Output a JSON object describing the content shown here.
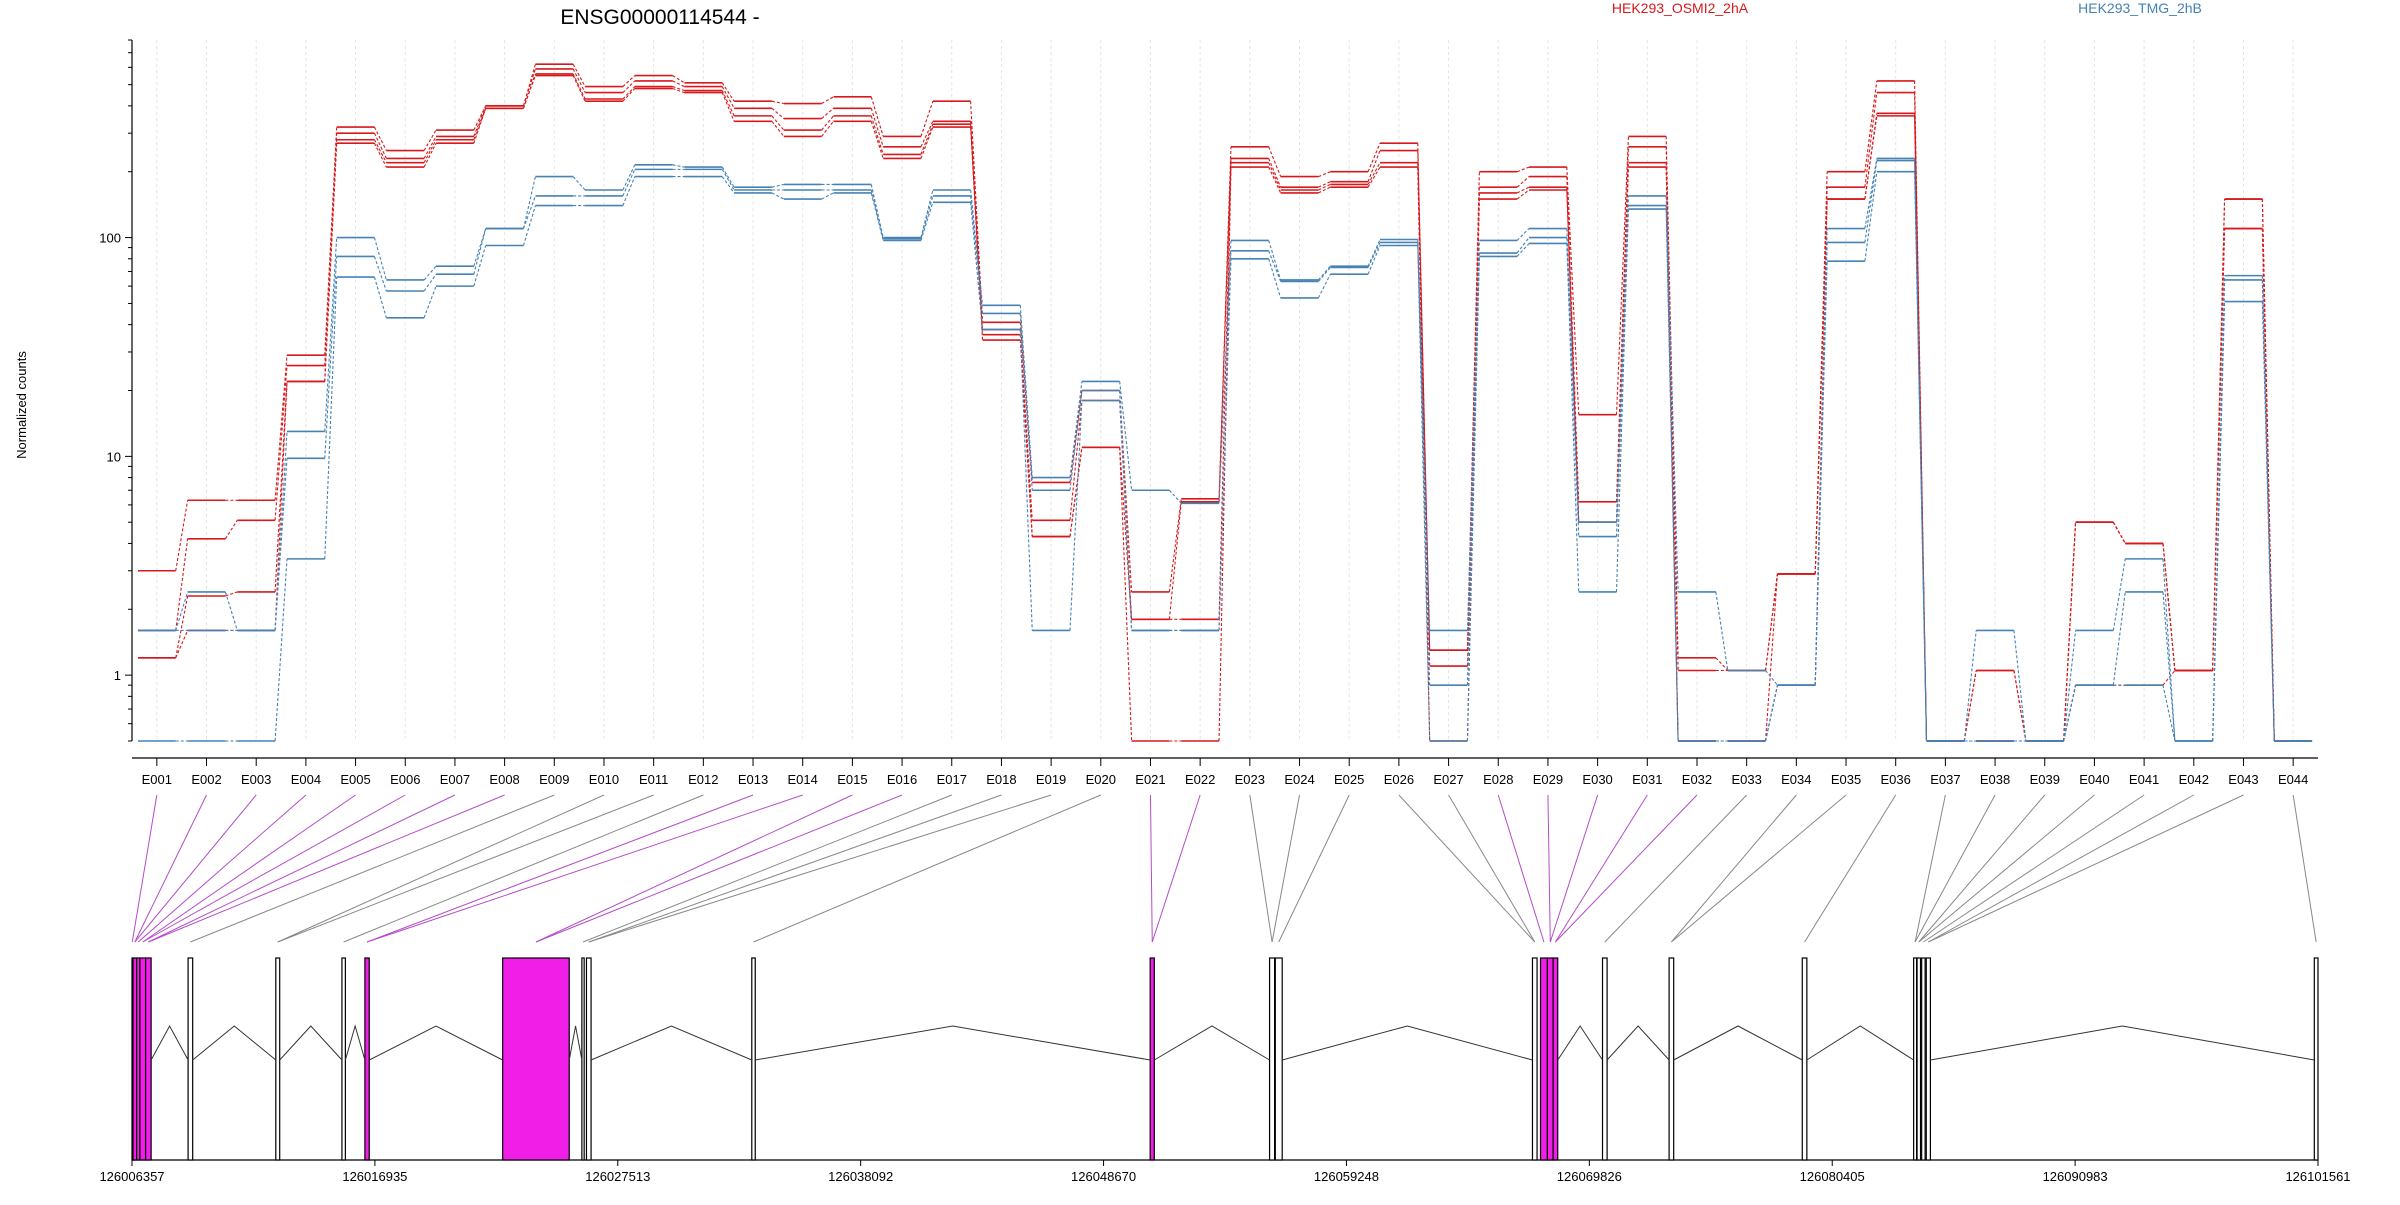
{
  "chart_data": {
    "type": "line",
    "title": "ENSG00000114544 -",
    "ylabel": "Normalized counts",
    "yscale": "log",
    "ylim": [
      0.5,
      800
    ],
    "yticks": [
      {
        "value": 1,
        "label": "1"
      },
      {
        "value": 10,
        "label": "10"
      },
      {
        "value": 100,
        "label": "100"
      }
    ],
    "grid": "vertical dashed at exon centers",
    "legend": "top, horizontal",
    "categories": [
      "E001",
      "E002",
      "E003",
      "E004",
      "E005",
      "E006",
      "E007",
      "E008",
      "E009",
      "E010",
      "E011",
      "E012",
      "E013",
      "E014",
      "E015",
      "E016",
      "E017",
      "E018",
      "E019",
      "E020",
      "E021",
      "E022",
      "E023",
      "E024",
      "E025",
      "E026",
      "E027",
      "E028",
      "E029",
      "E030",
      "E031",
      "E032",
      "E033",
      "E034",
      "E035",
      "E036",
      "E037",
      "E038",
      "E039",
      "E040",
      "E041",
      "E042",
      "E043",
      "E044"
    ],
    "series": [
      {
        "name": "HEK293_OSMI2_2hA",
        "color": "#d7191c",
        "values": [
          3.0,
          6.3,
          6.3,
          29,
          320,
          250,
          310,
          400,
          620,
          490,
          550,
          510,
          420,
          410,
          440,
          290,
          420,
          41,
          7.6,
          20,
          2.4,
          6.4,
          260,
          190,
          200,
          270,
          1.3,
          200,
          210,
          15.5,
          290,
          1.2,
          1.05,
          2.9,
          200,
          520,
          0.5,
          0.5,
          0.5,
          5.0,
          4.0,
          1.05,
          150,
          0.5
        ]
      },
      {
        "name": "HEK293_OSMI2_2hA",
        "color": "#d7191c",
        "values": [
          1.6,
          4.2,
          5.1,
          26,
          300,
          230,
          290,
          400,
          590,
          460,
          520,
          490,
          390,
          350,
          390,
          260,
          340,
          38,
          5.1,
          18,
          1.8,
          6.2,
          230,
          170,
          180,
          250,
          1.3,
          170,
          190,
          6.2,
          260,
          1.05,
          1.05,
          2.9,
          170,
          460,
          0.5,
          0.5,
          0.5,
          5.0,
          4.0,
          1.05,
          150,
          0.5
        ]
      },
      {
        "name": "HEK293_OSMI2_2hA",
        "color": "#d7191c",
        "values": [
          1.2,
          2.3,
          2.4,
          22,
          280,
          220,
          280,
          390,
          560,
          430,
          490,
          470,
          360,
          310,
          360,
          240,
          330,
          36,
          4.3,
          11,
          1.8,
          1.8,
          220,
          165,
          175,
          220,
          1.1,
          160,
          170,
          5.0,
          220,
          0.5,
          0.5,
          2.9,
          150,
          370,
          0.5,
          1.05,
          0.5,
          5.0,
          4.0,
          1.05,
          110,
          0.5
        ]
      },
      {
        "name": "HEK293_OSMI2_2hA",
        "color": "#d7191c",
        "values": [
          1.2,
          1.6,
          1.6,
          22,
          270,
          210,
          270,
          390,
          550,
          420,
          480,
          460,
          340,
          290,
          340,
          230,
          320,
          34,
          4.3,
          11,
          0.5,
          0.5,
          210,
          160,
          170,
          210,
          0.5,
          150,
          165,
          5.0,
          210,
          0.5,
          0.5,
          0.9,
          150,
          360,
          0.5,
          1.05,
          0.5,
          0.9,
          0.9,
          1.05,
          110,
          0.5
        ]
      },
      {
        "name": "HEK293_TMG_2hB",
        "color": "#4682b4",
        "values": [
          1.6,
          2.4,
          1.6,
          13,
          100,
          64,
          74,
          110,
          190,
          165,
          215,
          210,
          170,
          175,
          175,
          100,
          165,
          49,
          8.0,
          22,
          7.0,
          6.1,
          97,
          64,
          74,
          98,
          1.6,
          97,
          110,
          5.0,
          155,
          2.4,
          1.05,
          0.9,
          110,
          230,
          0.5,
          1.6,
          0.5,
          1.6,
          3.4,
          0.5,
          67,
          0.5
        ]
      },
      {
        "name": "HEK293_TMG_2hB",
        "color": "#4682b4",
        "values": [
          1.6,
          1.6,
          1.6,
          9.8,
          82,
          57,
          68,
          110,
          155,
          155,
          205,
          205,
          165,
          165,
          165,
          99,
          155,
          45,
          7.0,
          20,
          1.6,
          1.6,
          87,
          63,
          73,
          95,
          0.9,
          85,
          100,
          4.3,
          140,
          0.5,
          0.5,
          0.9,
          95,
          225,
          0.5,
          0.5,
          0.5,
          0.9,
          2.4,
          0.5,
          64,
          0.5
        ]
      },
      {
        "name": "HEK293_TMG_2hB",
        "color": "#4682b4",
        "values": [
          0.5,
          0.5,
          0.5,
          3.4,
          66,
          43,
          60,
          92,
          140,
          140,
          190,
          190,
          160,
          150,
          160,
          97,
          145,
          38,
          1.6,
          18,
          1.6,
          1.6,
          80,
          53,
          68,
          92,
          0.5,
          82,
          94,
          2.4,
          135,
          0.5,
          0.5,
          0.9,
          78,
          200,
          0.5,
          0.5,
          0.5,
          0.9,
          0.9,
          0.5,
          51,
          0.5
        ]
      }
    ],
    "gene_model": {
      "coordinates": [
        "126006357",
        "126016935",
        "126027513",
        "126038092",
        "126048670",
        "126059248",
        "126069826",
        "126080405",
        "126090983",
        "126101561"
      ],
      "range": [
        126006357,
        126101561
      ],
      "highlight_color": "#f01ee6",
      "exons": [
        {
          "start": 126006357,
          "end": 126006380,
          "hl": true
        },
        {
          "start": 126006400,
          "end": 126006560,
          "hl": true
        },
        {
          "start": 126006560,
          "end": 126006700,
          "hl": true
        },
        {
          "start": 126006700,
          "end": 126006950,
          "hl": true
        },
        {
          "start": 126006950,
          "end": 126007190,
          "hl": true
        },
        {
          "start": 126008800,
          "end": 126009000,
          "hl": false
        },
        {
          "start": 126012620,
          "end": 126012790,
          "hl": false
        },
        {
          "start": 126015500,
          "end": 126015650,
          "hl": false
        },
        {
          "start": 126016500,
          "end": 126016690,
          "hl": true
        },
        {
          "start": 126022500,
          "end": 126025400,
          "hl": true
        },
        {
          "start": 126025950,
          "end": 126026050,
          "hl": false
        },
        {
          "start": 126026150,
          "end": 126026350,
          "hl": false
        },
        {
          "start": 126033350,
          "end": 126033500,
          "hl": false
        },
        {
          "start": 126050700,
          "end": 126050880,
          "hl": true
        },
        {
          "start": 126055900,
          "end": 126056120,
          "hl": false
        },
        {
          "start": 126056150,
          "end": 126056450,
          "hl": false
        },
        {
          "start": 126067350,
          "end": 126067550,
          "hl": false
        },
        {
          "start": 126067700,
          "end": 126068000,
          "hl": true
        },
        {
          "start": 126068000,
          "end": 126068250,
          "hl": true
        },
        {
          "start": 126068250,
          "end": 126068450,
          "hl": true
        },
        {
          "start": 126070400,
          "end": 126070600,
          "hl": false
        },
        {
          "start": 126073300,
          "end": 126073500,
          "hl": false
        },
        {
          "start": 126079100,
          "end": 126079300,
          "hl": false
        },
        {
          "start": 126083950,
          "end": 126084080,
          "hl": false
        },
        {
          "start": 126084100,
          "end": 126084250,
          "hl": false
        },
        {
          "start": 126084300,
          "end": 126084450,
          "hl": false
        },
        {
          "start": 126084500,
          "end": 126084680,
          "hl": false
        },
        {
          "start": 126101400,
          "end": 126101561,
          "hl": false
        }
      ]
    }
  }
}
